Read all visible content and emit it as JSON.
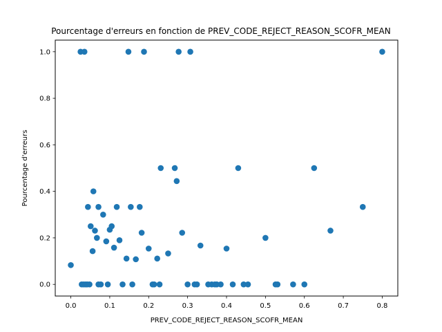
{
  "chart_data": {
    "type": "scatter",
    "title": "Pourcentage d'erreurs en fonction de PREV_CODE_REJECT_REASON_SCOFR_MEAN",
    "xlabel": "PREV_CODE_REJECT_REASON_SCOFR_MEAN",
    "ylabel": "Pourcentage d'erreurs",
    "xlim": [
      -0.04,
      0.84
    ],
    "ylim": [
      -0.05,
      1.05
    ],
    "xticks": [
      0.0,
      0.1,
      0.2,
      0.3,
      0.4,
      0.5,
      0.6,
      0.7,
      0.8
    ],
    "xtick_labels": [
      "0.0",
      "0.1",
      "0.2",
      "0.3",
      "0.4",
      "0.5",
      "0.6",
      "0.7",
      "0.8"
    ],
    "yticks": [
      0.0,
      0.2,
      0.4,
      0.6,
      0.8,
      1.0
    ],
    "ytick_labels": [
      "0.0",
      "0.2",
      "0.4",
      "0.6",
      "0.8",
      "1.0"
    ],
    "grid": false,
    "marker_color": "#1f77b4",
    "points": [
      {
        "x": 0.0,
        "y": 0.083
      },
      {
        "x": 0.025,
        "y": 1.0
      },
      {
        "x": 0.035,
        "y": 1.0
      },
      {
        "x": 0.148,
        "y": 1.0
      },
      {
        "x": 0.188,
        "y": 1.0
      },
      {
        "x": 0.277,
        "y": 1.0
      },
      {
        "x": 0.307,
        "y": 1.0
      },
      {
        "x": 0.8,
        "y": 1.0
      },
      {
        "x": 0.231,
        "y": 0.5
      },
      {
        "x": 0.267,
        "y": 0.5
      },
      {
        "x": 0.43,
        "y": 0.5
      },
      {
        "x": 0.625,
        "y": 0.5
      },
      {
        "x": 0.272,
        "y": 0.444
      },
      {
        "x": 0.058,
        "y": 0.4
      },
      {
        "x": 0.044,
        "y": 0.333
      },
      {
        "x": 0.071,
        "y": 0.333
      },
      {
        "x": 0.118,
        "y": 0.333
      },
      {
        "x": 0.154,
        "y": 0.333
      },
      {
        "x": 0.177,
        "y": 0.333
      },
      {
        "x": 0.75,
        "y": 0.333
      },
      {
        "x": 0.083,
        "y": 0.3
      },
      {
        "x": 0.051,
        "y": 0.25
      },
      {
        "x": 0.105,
        "y": 0.25
      },
      {
        "x": 0.1,
        "y": 0.235
      },
      {
        "x": 0.062,
        "y": 0.231
      },
      {
        "x": 0.667,
        "y": 0.231
      },
      {
        "x": 0.182,
        "y": 0.222
      },
      {
        "x": 0.286,
        "y": 0.222
      },
      {
        "x": 0.067,
        "y": 0.2
      },
      {
        "x": 0.5,
        "y": 0.2
      },
      {
        "x": 0.125,
        "y": 0.19
      },
      {
        "x": 0.091,
        "y": 0.185
      },
      {
        "x": 0.333,
        "y": 0.167
      },
      {
        "x": 0.111,
        "y": 0.158
      },
      {
        "x": 0.2,
        "y": 0.154
      },
      {
        "x": 0.4,
        "y": 0.154
      },
      {
        "x": 0.056,
        "y": 0.143
      },
      {
        "x": 0.25,
        "y": 0.133
      },
      {
        "x": 0.143,
        "y": 0.111
      },
      {
        "x": 0.222,
        "y": 0.111
      },
      {
        "x": 0.167,
        "y": 0.108
      },
      {
        "x": 0.028,
        "y": 0.0
      },
      {
        "x": 0.033,
        "y": 0.0
      },
      {
        "x": 0.038,
        "y": 0.0
      },
      {
        "x": 0.042,
        "y": 0.0
      },
      {
        "x": 0.048,
        "y": 0.0
      },
      {
        "x": 0.071,
        "y": 0.0
      },
      {
        "x": 0.077,
        "y": 0.0
      },
      {
        "x": 0.095,
        "y": 0.0
      },
      {
        "x": 0.133,
        "y": 0.0
      },
      {
        "x": 0.158,
        "y": 0.0
      },
      {
        "x": 0.21,
        "y": 0.0
      },
      {
        "x": 0.214,
        "y": 0.0
      },
      {
        "x": 0.228,
        "y": 0.0
      },
      {
        "x": 0.3,
        "y": 0.0
      },
      {
        "x": 0.318,
        "y": 0.0
      },
      {
        "x": 0.324,
        "y": 0.0
      },
      {
        "x": 0.353,
        "y": 0.0
      },
      {
        "x": 0.362,
        "y": 0.0
      },
      {
        "x": 0.37,
        "y": 0.0
      },
      {
        "x": 0.375,
        "y": 0.0
      },
      {
        "x": 0.385,
        "y": 0.0
      },
      {
        "x": 0.416,
        "y": 0.0
      },
      {
        "x": 0.444,
        "y": 0.0
      },
      {
        "x": 0.455,
        "y": 0.0
      },
      {
        "x": 0.526,
        "y": 0.0
      },
      {
        "x": 0.531,
        "y": 0.0
      },
      {
        "x": 0.571,
        "y": 0.0
      },
      {
        "x": 0.6,
        "y": 0.0
      }
    ]
  }
}
